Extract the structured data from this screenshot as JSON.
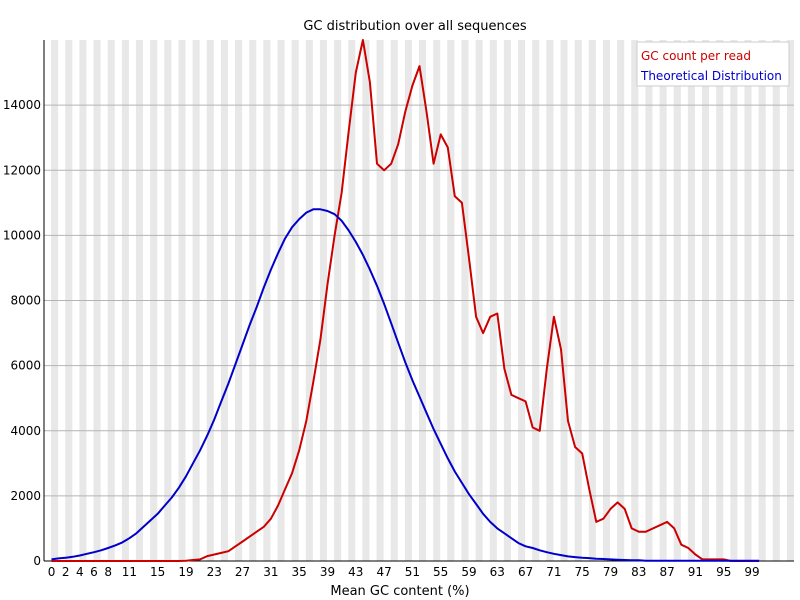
{
  "chart_data": {
    "type": "line",
    "title": "GC distribution over all sequences",
    "xlabel": "Mean GC content (%)",
    "ylabel": "",
    "xlim": [
      0,
      100
    ],
    "ylim": [
      0,
      16000
    ],
    "yticks": [
      0,
      2000,
      4000,
      6000,
      8000,
      10000,
      12000,
      14000
    ],
    "xticks": [
      0,
      2,
      4,
      6,
      8,
      11,
      15,
      19,
      23,
      27,
      31,
      35,
      39,
      43,
      47,
      51,
      55,
      59,
      63,
      67,
      71,
      75,
      79,
      83,
      87,
      91,
      95,
      99
    ],
    "grid": true,
    "legend_position": "top-right",
    "series": [
      {
        "name": "GC count per read",
        "color": "#cc0000",
        "x": [
          0,
          1,
          2,
          3,
          4,
          5,
          6,
          7,
          8,
          9,
          10,
          11,
          12,
          13,
          14,
          15,
          16,
          17,
          18,
          19,
          20,
          21,
          22,
          23,
          24,
          25,
          26,
          27,
          28,
          29,
          30,
          31,
          32,
          33,
          34,
          35,
          36,
          37,
          38,
          39,
          40,
          41,
          42,
          43,
          44,
          45,
          46,
          47,
          48,
          49,
          50,
          51,
          52,
          53,
          54,
          55,
          56,
          57,
          58,
          59,
          60,
          61,
          62,
          63,
          64,
          65,
          66,
          67,
          68,
          69,
          70,
          71,
          72,
          73,
          74,
          75,
          76,
          77,
          78,
          79,
          80,
          81,
          82,
          83,
          84,
          85,
          86,
          87,
          88,
          89,
          90,
          91,
          92,
          93,
          94,
          95,
          96,
          97,
          98,
          99,
          100
        ],
        "values": [
          0,
          0,
          0,
          0,
          0,
          0,
          0,
          0,
          0,
          0,
          0,
          0,
          0,
          0,
          0,
          0,
          0,
          0,
          0,
          10,
          30,
          50,
          150,
          200,
          250,
          300,
          450,
          600,
          750,
          900,
          1050,
          1300,
          1700,
          2200,
          2700,
          3400,
          4300,
          5500,
          6800,
          8500,
          10000,
          11300,
          13200,
          15000,
          16000,
          14700,
          12200,
          12000,
          12200,
          12800,
          13800,
          14600,
          15200,
          13800,
          12200,
          13100,
          12700,
          11200,
          11000,
          9300,
          7500,
          7000,
          7500,
          7600,
          5900,
          5100,
          5000,
          4900,
          4100,
          4000,
          5900,
          7500,
          6500,
          4300,
          3500,
          3300,
          2200,
          1200,
          1300,
          1600,
          1800,
          1600,
          1000,
          900,
          900,
          1000,
          1100,
          1200,
          1000,
          500,
          400,
          200,
          50,
          50,
          50,
          50,
          0,
          0,
          0,
          0,
          0
        ],
        "note_x_offset": 0
      },
      {
        "name": "Theoretical Distribution",
        "color": "#0000cc",
        "x": [
          0,
          1,
          2,
          3,
          4,
          5,
          6,
          7,
          8,
          9,
          10,
          11,
          12,
          13,
          14,
          15,
          16,
          17,
          18,
          19,
          20,
          21,
          22,
          23,
          24,
          25,
          26,
          27,
          28,
          29,
          30,
          31,
          32,
          33,
          34,
          35,
          36,
          37,
          38,
          39,
          40,
          41,
          42,
          43,
          44,
          45,
          46,
          47,
          48,
          49,
          50,
          51,
          52,
          53,
          54,
          55,
          56,
          57,
          58,
          59,
          60,
          61,
          62,
          63,
          64,
          65,
          66,
          67,
          68,
          69,
          70,
          71,
          72,
          73,
          74,
          75,
          76,
          77,
          78,
          79,
          80,
          81,
          82,
          83,
          84,
          85,
          86,
          87,
          88,
          89,
          90,
          91,
          92,
          93,
          94,
          95,
          96,
          97,
          98,
          99,
          100
        ],
        "values": [
          50,
          80,
          100,
          130,
          170,
          220,
          270,
          330,
          400,
          480,
          570,
          700,
          850,
          1050,
          1250,
          1450,
          1700,
          1950,
          2250,
          2600,
          3000,
          3400,
          3850,
          4350,
          4900,
          5450,
          6050,
          6650,
          7250,
          7800,
          8400,
          8950,
          9450,
          9900,
          10250,
          10500,
          10700,
          10800,
          10800,
          10750,
          10650,
          10450,
          10150,
          9800,
          9400,
          8950,
          8450,
          7900,
          7300,
          6700,
          6100,
          5550,
          5050,
          4550,
          4050,
          3600,
          3150,
          2750,
          2400,
          2050,
          1750,
          1450,
          1200,
          1000,
          850,
          700,
          550,
          450,
          400,
          330,
          270,
          220,
          180,
          140,
          120,
          100,
          90,
          70,
          60,
          50,
          40,
          30,
          20,
          20,
          10,
          10,
          10,
          10,
          10,
          10,
          10,
          10,
          10,
          10,
          10,
          10,
          10,
          10,
          10,
          10,
          10
        ],
        "note_x_offset": 0
      }
    ]
  }
}
